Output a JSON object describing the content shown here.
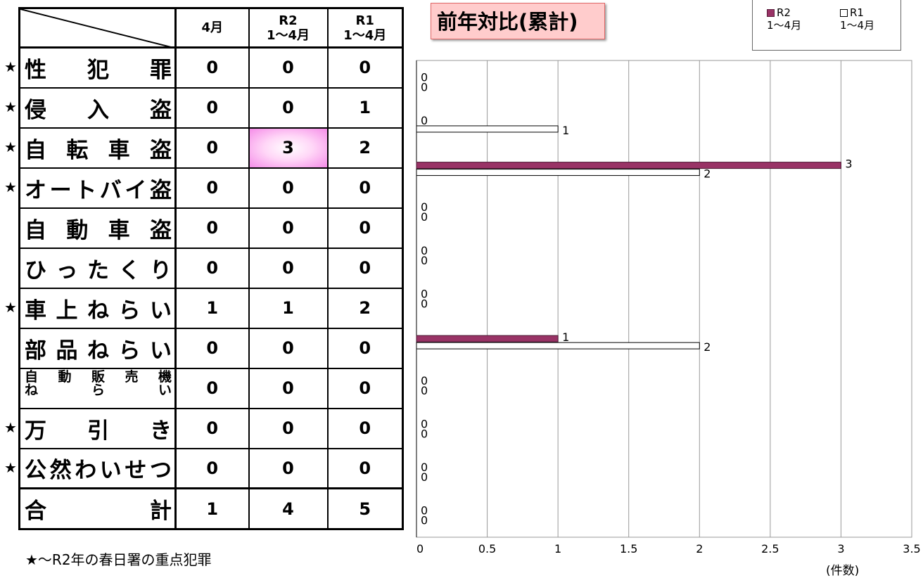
{
  "table": {
    "headers": [
      "4月",
      "R2\n1～4月",
      "R1\n1～4月"
    ],
    "rows": [
      {
        "star": true,
        "label": [
          "性",
          "犯",
          "罪"
        ],
        "apr": "0",
        "r2": "0",
        "r1": "0"
      },
      {
        "star": true,
        "label": [
          "侵",
          "入",
          "盗"
        ],
        "apr": "0",
        "r2": "0",
        "r1": "1"
      },
      {
        "star": true,
        "label": [
          "自",
          "転",
          "車",
          "盗"
        ],
        "apr": "0",
        "r2": "3",
        "r1": "2",
        "highlight": true
      },
      {
        "star": true,
        "label": [
          "オ",
          "ー",
          "ト",
          "バ",
          "イ",
          "盗"
        ],
        "apr": "0",
        "r2": "0",
        "r1": "0"
      },
      {
        "star": false,
        "label": [
          "自",
          "動",
          "車",
          "盗"
        ],
        "apr": "0",
        "r2": "0",
        "r1": "0"
      },
      {
        "star": false,
        "label": [
          "ひ",
          "っ",
          "た",
          "く",
          "り"
        ],
        "apr": "0",
        "r2": "0",
        "r1": "0"
      },
      {
        "star": true,
        "label": [
          "車",
          "上",
          "ね",
          "ら",
          "い"
        ],
        "apr": "1",
        "r2": "1",
        "r1": "2"
      },
      {
        "star": false,
        "label": [
          "部",
          "品",
          "ね",
          "ら",
          "い"
        ],
        "apr": "0",
        "r2": "0",
        "r1": "0"
      },
      {
        "star": false,
        "label_small": [
          [
            "自",
            "動",
            "販",
            "売",
            "機"
          ],
          [
            "ね",
            "ら",
            "い"
          ]
        ],
        "apr": "0",
        "r2": "0",
        "r1": "0"
      },
      {
        "star": true,
        "label": [
          "万",
          "引",
          "き"
        ],
        "apr": "0",
        "r2": "0",
        "r1": "0"
      },
      {
        "star": true,
        "label": [
          "公",
          "然",
          "わ",
          "い",
          "せ",
          "つ"
        ],
        "apr": "0",
        "r2": "0",
        "r1": "0"
      },
      {
        "star": false,
        "label": [
          "合",
          "計"
        ],
        "apr": "1",
        "r2": "4",
        "r1": "5",
        "total": true
      }
    ],
    "star_char": "★"
  },
  "footnote": "★～R2年の春日署の重点犯罪",
  "chart_data": {
    "type": "bar",
    "orientation": "horizontal",
    "title": "前年対比(累計)",
    "categories": [
      "性犯罪",
      "侵入盗",
      "自転車盗",
      "オートバイ盗",
      "自動車盗",
      "ひったくり",
      "車上ねらい",
      "部品ねらい",
      "自動販売機ねらい",
      "万引き",
      "公然わいせつ"
    ],
    "series": [
      {
        "name": "R2\n1～4月",
        "color": "#993366",
        "values": [
          0,
          0,
          3,
          0,
          0,
          0,
          1,
          0,
          0,
          0,
          0
        ]
      },
      {
        "name": "R1\n1～4月",
        "color": "#ffffff",
        "values": [
          0,
          1,
          2,
          0,
          0,
          0,
          2,
          0,
          0,
          0,
          0
        ]
      }
    ],
    "xlim": [
      0,
      3.5
    ],
    "xticks": [
      "0",
      "0.5",
      "1",
      "1.5",
      "2",
      "2.5",
      "3",
      "3.5"
    ],
    "xlabel": "(件数)",
    "grid": true,
    "legend": "top-right"
  }
}
